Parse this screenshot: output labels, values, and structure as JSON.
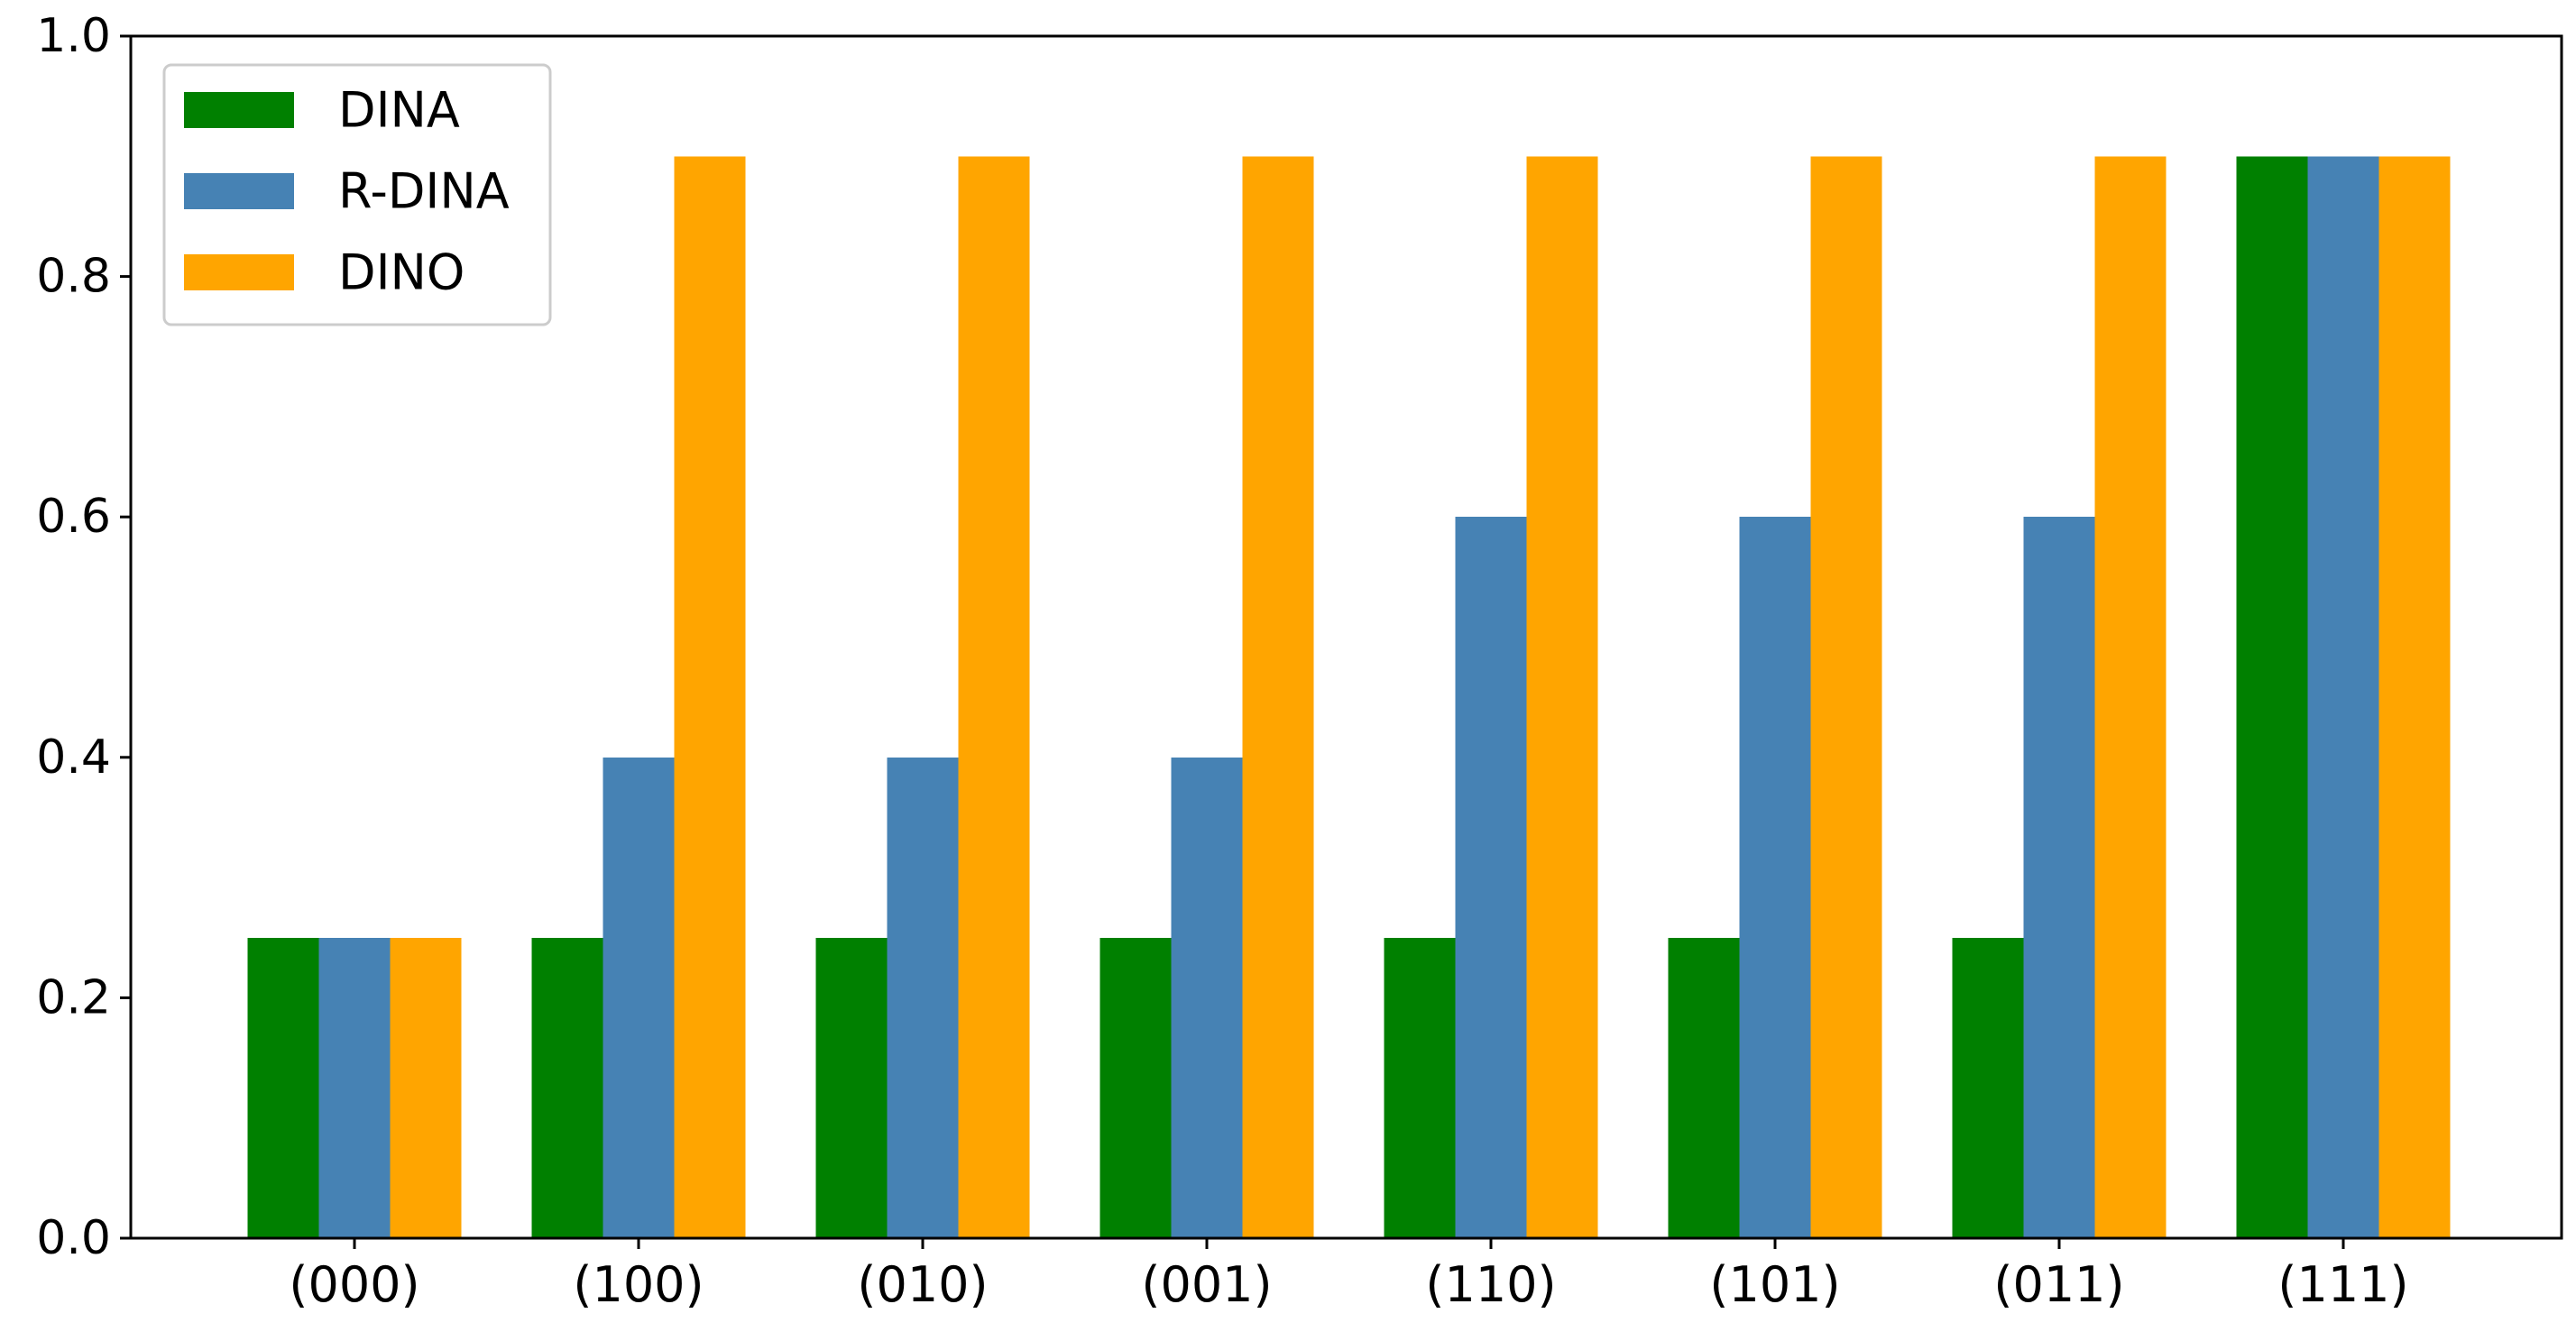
{
  "chart_data": {
    "type": "bar",
    "title": "",
    "xlabel": "",
    "ylabel": "",
    "categories": [
      "(000)",
      "(100)",
      "(010)",
      "(001)",
      "(110)",
      "(101)",
      "(011)",
      "(111)"
    ],
    "ylim": [
      0,
      1.0
    ],
    "yticks": [
      "0.0",
      "0.2",
      "0.4",
      "0.6",
      "0.8",
      "1.0"
    ],
    "grid": false,
    "legend_position": "top-left",
    "series": [
      {
        "name": "DINA",
        "color": "#008000",
        "values": [
          0.25,
          0.25,
          0.25,
          0.25,
          0.25,
          0.25,
          0.25,
          0.9
        ]
      },
      {
        "name": "R-DINA",
        "color": "#4682b4",
        "values": [
          0.25,
          0.4,
          0.4,
          0.4,
          0.6,
          0.6,
          0.6,
          0.9
        ]
      },
      {
        "name": "DINO",
        "color": "#ffa500",
        "values": [
          0.25,
          0.9,
          0.9,
          0.9,
          0.9,
          0.9,
          0.9,
          0.9
        ]
      }
    ]
  }
}
